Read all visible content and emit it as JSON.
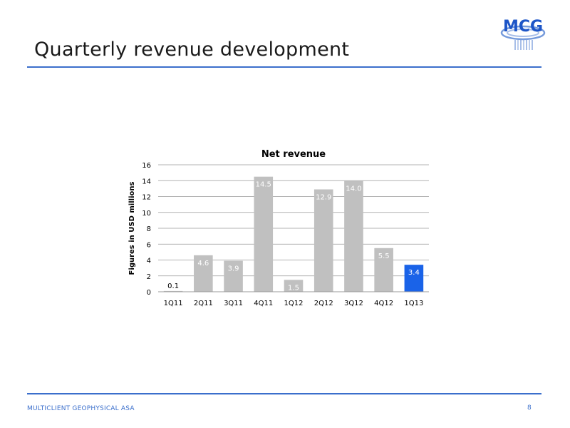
{
  "slide": {
    "title": "Quarterly revenue development",
    "company": "MULTICLIENT GEOPHYSICAL ASA",
    "page_number": "8"
  },
  "logo": {
    "text": "MCG",
    "icon": "mcg-logo-icon",
    "color": "#3b6fcc"
  },
  "chart_data": {
    "type": "bar",
    "title": "Net revenue",
    "ylabel": "Figures in USD millions",
    "xlabel": "",
    "categories": [
      "1Q11",
      "2Q11",
      "3Q11",
      "4Q11",
      "1Q12",
      "2Q12",
      "3Q12",
      "4Q12",
      "1Q13"
    ],
    "values": [
      0.1,
      4.6,
      3.9,
      14.5,
      1.5,
      12.9,
      14.0,
      5.5,
      3.4
    ],
    "data_labels": [
      "0.1",
      "4.6",
      "3.9",
      "14.5",
      "1.5",
      "12.9",
      "14.0",
      "5.5",
      "3.4"
    ],
    "ylim": [
      0,
      16
    ],
    "yticks": [
      0,
      2,
      4,
      6,
      8,
      10,
      12,
      14,
      16
    ],
    "grid": true,
    "legend": "none",
    "bar_color": "#c0c0c0",
    "highlight_color": "#1a63e8",
    "highlight_index": 8
  }
}
